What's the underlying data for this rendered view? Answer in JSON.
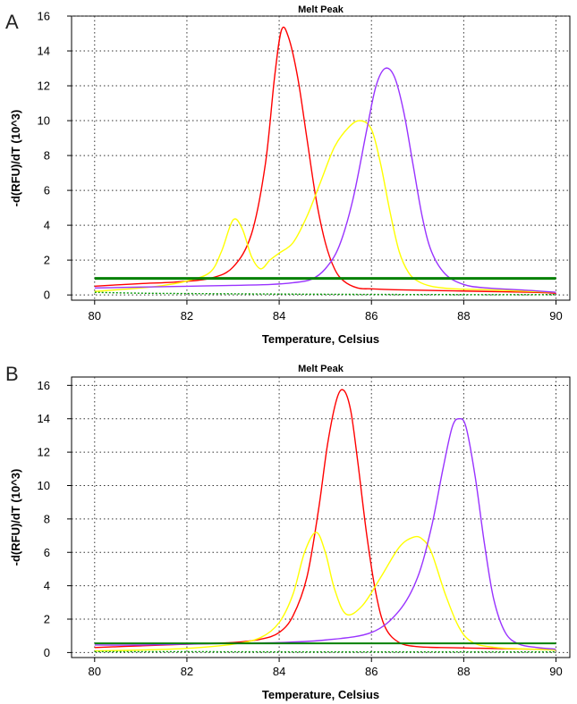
{
  "panels": [
    {
      "letter": "A"
    },
    {
      "letter": "B"
    }
  ],
  "chart_data": [
    {
      "type": "line",
      "title": "Melt Peak",
      "xlabel": "Temperature, Celsius",
      "ylabel": "-d(RFU)/dT (10^3)",
      "xlim": [
        79.5,
        90.3
      ],
      "ylim": [
        -0.3,
        16
      ],
      "xticks": [
        80,
        82,
        84,
        86,
        88,
        90
      ],
      "yticks": [
        0,
        2,
        4,
        6,
        8,
        10,
        12,
        14,
        16
      ],
      "grid": true,
      "series": [
        {
          "color": "#ff0000",
          "x": [
            80.0,
            80.3,
            81.0,
            81.8,
            82.5,
            83.0,
            83.4,
            83.7,
            83.9,
            84.05,
            84.2,
            84.4,
            84.6,
            84.8,
            85.0,
            85.2,
            85.4,
            85.7,
            86.0,
            86.5,
            87.5,
            88.5,
            89.5,
            90.0
          ],
          "y": [
            0.5,
            0.55,
            0.65,
            0.75,
            0.95,
            1.6,
            3.5,
            7.5,
            12.5,
            15.2,
            14.8,
            12.5,
            9.0,
            5.5,
            3.0,
            1.5,
            0.8,
            0.4,
            0.35,
            0.3,
            0.25,
            0.2,
            0.15,
            0.1
          ]
        },
        {
          "color": "#ffff00",
          "x": [
            80.0,
            80.5,
            81.0,
            81.5,
            82.0,
            82.5,
            82.75,
            83.0,
            83.2,
            83.4,
            83.6,
            83.8,
            84.0,
            84.3,
            84.6,
            84.9,
            85.2,
            85.5,
            85.75,
            86.0,
            86.2,
            86.4,
            86.6,
            86.8,
            87.0,
            87.3,
            87.8,
            88.5,
            89.5,
            90.0
          ],
          "y": [
            0.2,
            0.3,
            0.4,
            0.55,
            0.8,
            1.3,
            2.5,
            4.3,
            3.8,
            2.2,
            1.5,
            2.0,
            2.4,
            3.0,
            4.5,
            6.5,
            8.5,
            9.6,
            10.0,
            9.5,
            7.5,
            4.8,
            2.5,
            1.3,
            0.8,
            0.5,
            0.35,
            0.3,
            0.2,
            0.15
          ]
        },
        {
          "color": "#9933ff",
          "x": [
            80.0,
            81.0,
            82.0,
            83.0,
            83.8,
            84.3,
            84.7,
            85.0,
            85.3,
            85.6,
            85.9,
            86.1,
            86.3,
            86.5,
            86.7,
            86.9,
            87.1,
            87.3,
            87.6,
            88.0,
            88.5,
            89.5,
            90.0
          ],
          "y": [
            0.4,
            0.45,
            0.5,
            0.55,
            0.6,
            0.7,
            0.9,
            1.5,
            2.8,
            5.5,
            9.5,
            12.0,
            13.0,
            12.5,
            10.5,
            7.5,
            4.5,
            2.5,
            1.2,
            0.6,
            0.4,
            0.25,
            0.15
          ]
        },
        {
          "color": "#008000",
          "x": [
            80.0,
            90.0
          ],
          "y": [
            0.95,
            0.95
          ],
          "width": 3
        },
        {
          "color": "#009900",
          "x": [
            80.0,
            81.0,
            82.0,
            84.0,
            86.0,
            88.0,
            90.0
          ],
          "y": [
            0.15,
            0.1,
            0.08,
            0.05,
            0.03,
            0.02,
            0.02
          ],
          "dashed": true
        }
      ]
    },
    {
      "type": "line",
      "title": "Melt Peak",
      "xlabel": "Temperature, Celsius",
      "ylabel": "-d(RFU)/dT (10^3)",
      "xlim": [
        79.5,
        90.3
      ],
      "ylim": [
        -0.3,
        16.5
      ],
      "xticks": [
        80,
        82,
        84,
        86,
        88,
        90
      ],
      "yticks": [
        0,
        2,
        4,
        6,
        8,
        10,
        12,
        14,
        16
      ],
      "grid": true,
      "series": [
        {
          "color": "#ff0000",
          "x": [
            80.0,
            81.0,
            82.0,
            83.0,
            83.6,
            84.0,
            84.3,
            84.6,
            84.85,
            85.05,
            85.25,
            85.4,
            85.55,
            85.7,
            85.9,
            86.1,
            86.3,
            86.6,
            87.0,
            87.5,
            88.5,
            89.5,
            90.0
          ],
          "y": [
            0.3,
            0.4,
            0.5,
            0.6,
            0.8,
            1.2,
            2.2,
            4.5,
            8.5,
            12.5,
            15.2,
            15.7,
            14.5,
            11.5,
            7.0,
            3.5,
            1.5,
            0.6,
            0.35,
            0.3,
            0.25,
            0.2,
            0.15
          ]
        },
        {
          "color": "#ffff00",
          "x": [
            80.0,
            81.0,
            82.0,
            83.0,
            83.6,
            84.0,
            84.3,
            84.55,
            84.8,
            85.0,
            85.2,
            85.45,
            85.8,
            86.2,
            86.6,
            86.9,
            87.1,
            87.3,
            87.6,
            87.9,
            88.2,
            88.7,
            89.5,
            90.0
          ],
          "y": [
            0.1,
            0.15,
            0.25,
            0.5,
            0.9,
            1.8,
            3.5,
            6.0,
            7.2,
            6.0,
            3.8,
            2.3,
            2.8,
            4.5,
            6.3,
            6.9,
            6.8,
            6.0,
            3.5,
            1.5,
            0.6,
            0.3,
            0.2,
            0.15
          ]
        },
        {
          "color": "#9933ff",
          "x": [
            80.0,
            81.0,
            82.0,
            83.0,
            84.0,
            85.0,
            86.0,
            86.6,
            87.0,
            87.3,
            87.55,
            87.75,
            87.9,
            88.05,
            88.25,
            88.45,
            88.65,
            88.9,
            89.2,
            89.6,
            90.0
          ],
          "y": [
            0.45,
            0.45,
            0.5,
            0.55,
            0.6,
            0.75,
            1.2,
            2.5,
            4.5,
            7.5,
            11.0,
            13.5,
            14.0,
            13.5,
            10.5,
            6.5,
            3.2,
            1.2,
            0.5,
            0.3,
            0.2
          ]
        },
        {
          "color": "#008000",
          "x": [
            80.0,
            90.0
          ],
          "y": [
            0.55,
            0.55
          ],
          "width": 2
        },
        {
          "color": "#009900",
          "x": [
            80.0,
            82.0,
            84.0,
            86.0,
            88.0,
            90.0
          ],
          "y": [
            0.05,
            0.05,
            0.04,
            0.04,
            0.04,
            0.04
          ],
          "dashed": true
        }
      ]
    }
  ]
}
